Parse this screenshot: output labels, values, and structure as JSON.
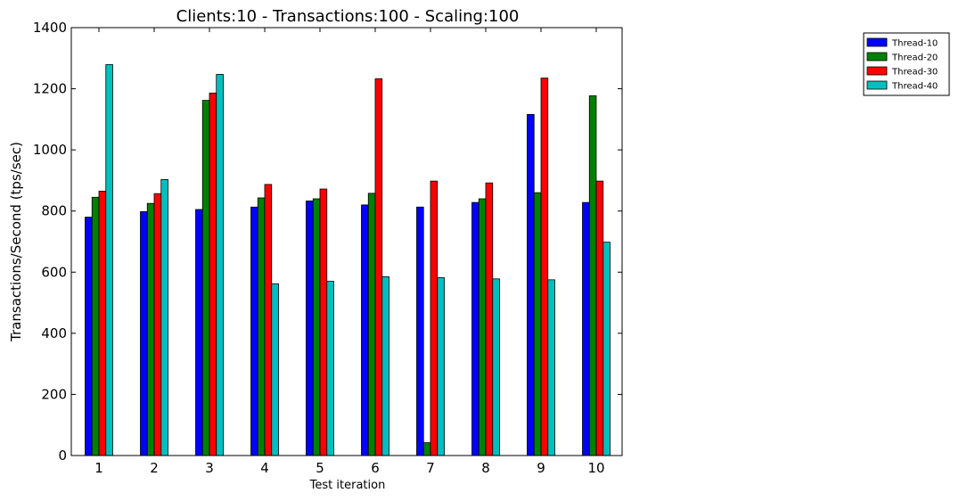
{
  "chart_data": {
    "type": "bar",
    "title": "Clients:10 - Transactions:100 - Scaling:100",
    "xlabel": "Test iteration",
    "ylabel": "Transactions/Second (tps/sec)",
    "ylim": [
      0,
      1400
    ],
    "yticks": [
      "0",
      "200",
      "400",
      "600",
      "800",
      "1000",
      "1200",
      "1400"
    ],
    "categories": [
      "1",
      "2",
      "3",
      "4",
      "5",
      "6",
      "7",
      "8",
      "9",
      "10"
    ],
    "grid": false,
    "legend_position": "top-right, outside plot",
    "series": [
      {
        "name": "Thread-10",
        "color": "#0000ff",
        "values": [
          780,
          798,
          805,
          813,
          833,
          820,
          813,
          828,
          1116,
          828
        ]
      },
      {
        "name": "Thread-20",
        "color": "#008000",
        "values": [
          845,
          825,
          1162,
          843,
          840,
          858,
          42,
          840,
          860,
          1177
        ]
      },
      {
        "name": "Thread-30",
        "color": "#ff0000",
        "values": [
          865,
          857,
          1186,
          887,
          872,
          1233,
          898,
          892,
          1235,
          898
        ]
      },
      {
        "name": "Thread-40",
        "color": "#00bfbf",
        "values": [
          1279,
          903,
          1247,
          562,
          570,
          585,
          582,
          578,
          575,
          698
        ]
      }
    ]
  }
}
